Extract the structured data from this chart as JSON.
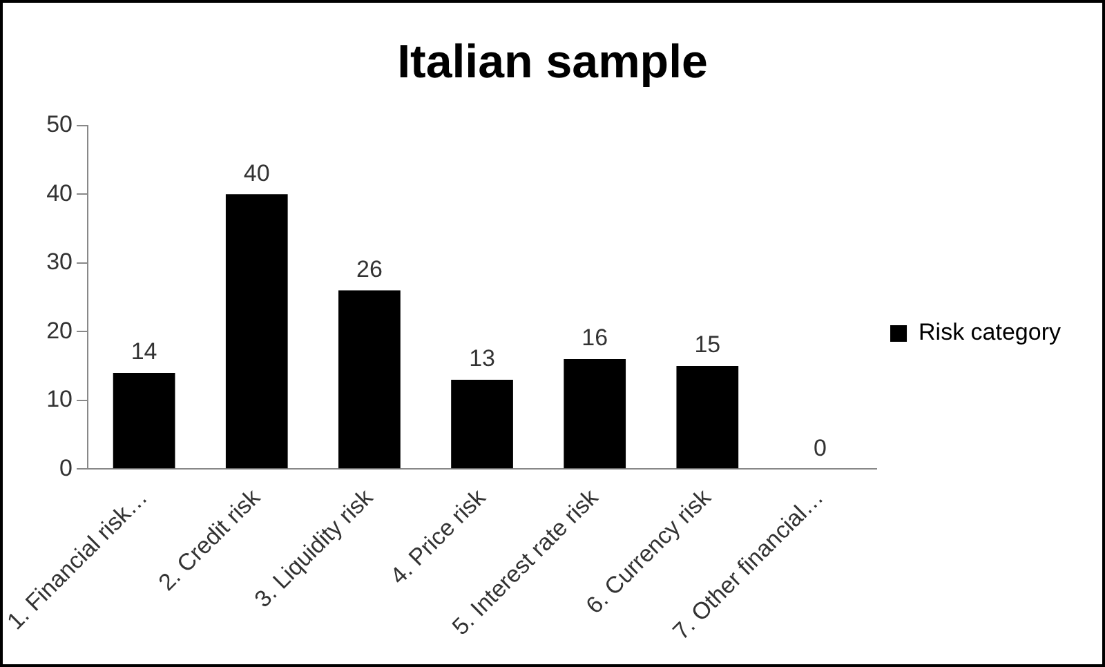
{
  "chart_data": {
    "type": "bar",
    "title": "Italian sample",
    "categories": [
      "1. Financial risk…",
      "2. Credit risk",
      "3. Liquidity risk",
      "4. Price risk",
      "5. Interest rate risk",
      "6. Currency risk",
      "7. Other financial…"
    ],
    "series": [
      {
        "name": "Risk category",
        "color": "#000000",
        "values": [
          14,
          40,
          26,
          13,
          16,
          15,
          0
        ]
      }
    ],
    "ylim": [
      0,
      50
    ],
    "yticks": [
      0,
      10,
      20,
      30,
      40,
      50
    ],
    "grid": false,
    "legend": "right",
    "data_labels": true
  }
}
